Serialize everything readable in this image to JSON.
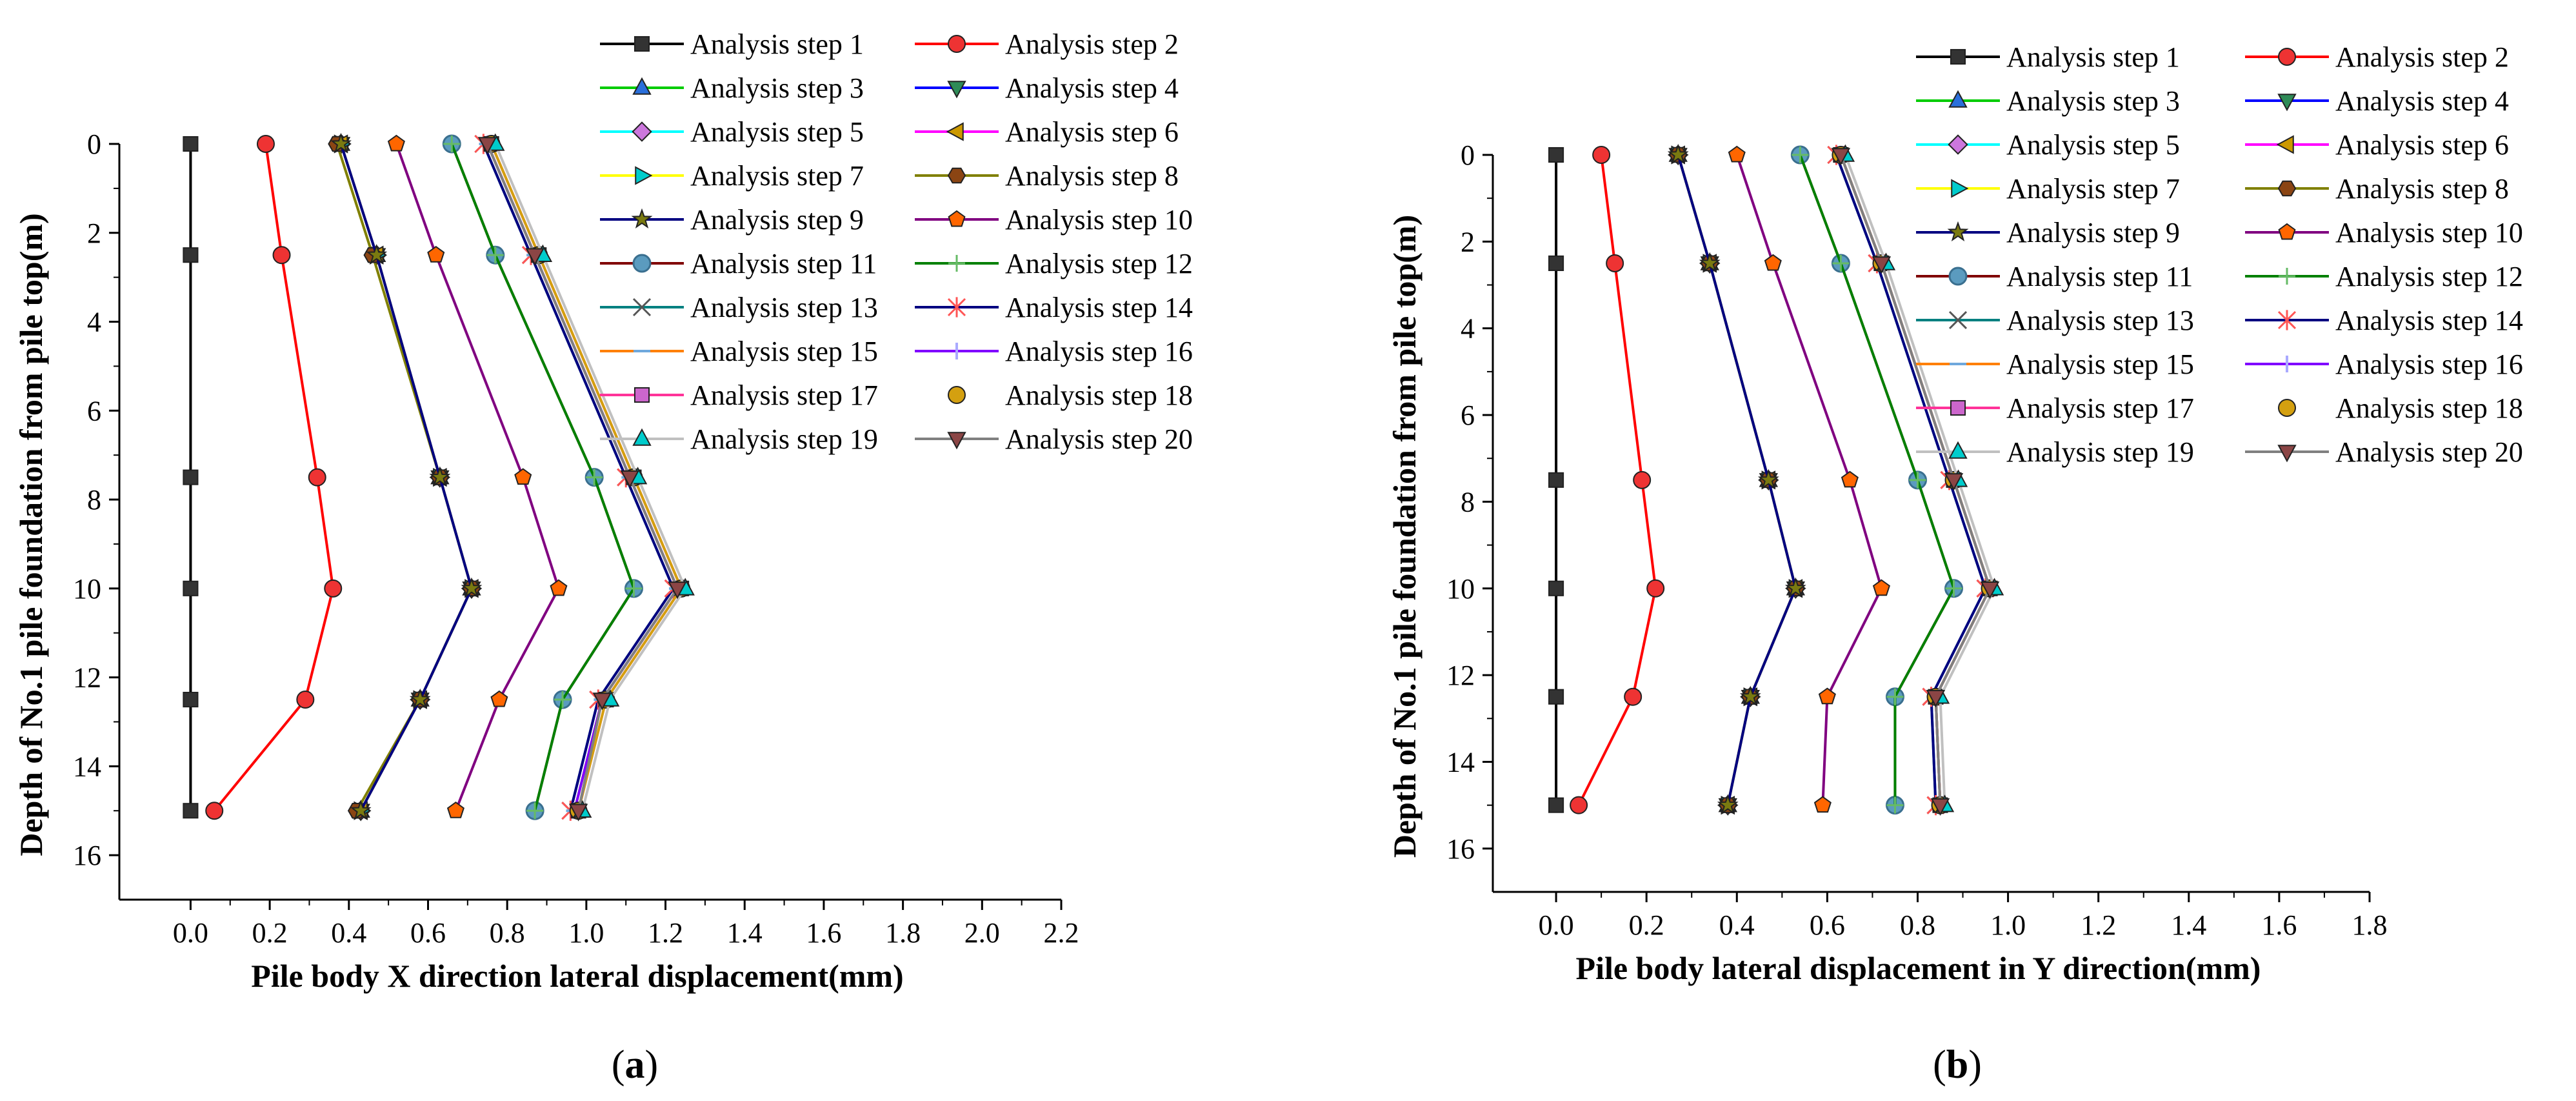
{
  "figure": {
    "panels": [
      {
        "caption_open": "(",
        "caption_letter": "a",
        "caption_close": ")"
      },
      {
        "caption_open": "(",
        "caption_letter": "b",
        "caption_close": ")"
      }
    ]
  },
  "legend_style": [
    {
      "color": "#000000",
      "marker": "square",
      "marker_color": "#333333"
    },
    {
      "color": "#ff0000",
      "marker": "circle",
      "marker_color": "#ee3333"
    },
    {
      "color": "#00cc00",
      "marker": "triangle",
      "marker_color": "#2a6fdb"
    },
    {
      "color": "#0000ff",
      "marker": "triangle-down",
      "marker_color": "#2e8b57"
    },
    {
      "color": "#00ffff",
      "marker": "diamond",
      "marker_color": "#cc77dd"
    },
    {
      "color": "#ff00ff",
      "marker": "triangle-left",
      "marker_color": "#cc9900"
    },
    {
      "color": "#ffff00",
      "marker": "triangle-right",
      "marker_color": "#00cccc"
    },
    {
      "color": "#808000",
      "marker": "hexagon",
      "marker_color": "#8b4513"
    },
    {
      "color": "#000080",
      "marker": "star",
      "marker_color": "#7a7a10"
    },
    {
      "color": "#800080",
      "marker": "pentagon",
      "marker_color": "#ff6600"
    },
    {
      "color": "#800000",
      "marker": "sphere",
      "marker_color": "#5b9bbf"
    },
    {
      "color": "#008000",
      "marker": "plus",
      "marker_color": "#66bb66"
    },
    {
      "color": "#008080",
      "marker": "x",
      "marker_color": "#555555"
    },
    {
      "color": "#000080",
      "marker": "asterisk",
      "marker_color": "#ff5555"
    },
    {
      "color": "#ff8000",
      "marker": "dash",
      "marker_color": "#6fa8dc"
    },
    {
      "color": "#8000ff",
      "marker": "bar",
      "marker_color": "#aaaaff"
    },
    {
      "color": "#ff3399",
      "marker": "square",
      "marker_color": "#cc66cc"
    },
    {
      "color": "#ffffff",
      "marker": "circle",
      "marker_color": "#d4a010"
    },
    {
      "color": "#c0c0c0",
      "marker": "triangle",
      "marker_color": "#00cccc"
    },
    {
      "color": "#808080",
      "marker": "triangle-down",
      "marker_color": "#8b4545"
    }
  ],
  "chart_data": [
    {
      "type": "line",
      "title": "",
      "xlabel": "Pile body X direction lateral displacement(mm)",
      "ylabel": "Depth of No.1 pile foundation from pile top(m)",
      "xlim": [
        -0.18,
        2.2
      ],
      "ylim": [
        0,
        17
      ],
      "y_inverted": true,
      "xticks": [
        "0.0",
        "0.2",
        "0.4",
        "0.6",
        "0.8",
        "1.0",
        "1.2",
        "1.4",
        "1.6",
        "1.8",
        "2.0",
        "2.2"
      ],
      "yticks": [
        "0",
        "2",
        "4",
        "6",
        "8",
        "10",
        "12",
        "14",
        "16"
      ],
      "depths": [
        0,
        2.5,
        7.5,
        10,
        12.5,
        15
      ],
      "legend": {
        "location": "top-right",
        "columns": 2
      },
      "series": [
        {
          "name": "Analysis step 1",
          "values": [
            0,
            0,
            0,
            0,
            0,
            0
          ]
        },
        {
          "name": "Analysis step 2",
          "values": [
            0.19,
            0.23,
            0.32,
            0.36,
            0.29,
            0.06
          ]
        },
        {
          "name": "Analysis step 3",
          "values": [
            0.38,
            0.47,
            0.63,
            0.71,
            0.58,
            0.43
          ]
        },
        {
          "name": "Analysis step 4",
          "values": [
            0.38,
            0.47,
            0.63,
            0.71,
            0.58,
            0.43
          ]
        },
        {
          "name": "Analysis step 5",
          "values": [
            0.38,
            0.47,
            0.63,
            0.71,
            0.58,
            0.43
          ]
        },
        {
          "name": "Analysis step 6",
          "values": [
            0.38,
            0.47,
            0.63,
            0.71,
            0.58,
            0.43
          ]
        },
        {
          "name": "Analysis step 7",
          "values": [
            0.38,
            0.47,
            0.63,
            0.71,
            0.58,
            0.43
          ]
        },
        {
          "name": "Analysis step 8",
          "values": [
            0.37,
            0.46,
            0.63,
            0.71,
            0.58,
            0.42
          ]
        },
        {
          "name": "Analysis step 9",
          "values": [
            0.38,
            0.47,
            0.63,
            0.71,
            0.58,
            0.43
          ]
        },
        {
          "name": "Analysis step 10",
          "values": [
            0.52,
            0.62,
            0.84,
            0.93,
            0.78,
            0.67
          ]
        },
        {
          "name": "Analysis step 11",
          "values": [
            0.66,
            0.77,
            1.02,
            1.12,
            0.94,
            0.87
          ]
        },
        {
          "name": "Analysis step 12",
          "values": [
            0.66,
            0.77,
            1.02,
            1.12,
            0.94,
            0.87
          ]
        },
        {
          "name": "Analysis step 13",
          "values": [
            0.74,
            0.86,
            1.1,
            1.22,
            1.03,
            0.96
          ]
        },
        {
          "name": "Analysis step 14",
          "values": [
            0.74,
            0.86,
            1.1,
            1.22,
            1.03,
            0.96
          ]
        },
        {
          "name": "Analysis step 15",
          "values": [
            0.75,
            0.87,
            1.11,
            1.23,
            1.04,
            0.97
          ]
        },
        {
          "name": "Analysis step 16",
          "values": [
            0.75,
            0.87,
            1.11,
            1.23,
            1.04,
            0.97
          ]
        },
        {
          "name": "Analysis step 17",
          "values": [
            0.76,
            0.88,
            1.12,
            1.24,
            1.05,
            0.98
          ]
        },
        {
          "name": "Analysis step 18",
          "values": [
            0.76,
            0.88,
            1.12,
            1.24,
            1.05,
            0.98
          ]
        },
        {
          "name": "Analysis step 19",
          "values": [
            0.77,
            0.89,
            1.13,
            1.25,
            1.06,
            0.99
          ]
        },
        {
          "name": "Analysis step 20",
          "values": [
            0.75,
            0.87,
            1.11,
            1.23,
            1.04,
            0.98
          ]
        }
      ]
    },
    {
      "type": "line",
      "title": "",
      "xlabel": "Pile body lateral displacement in Y direction(mm)",
      "ylabel": "Depth of No.1 pile foundation from pile top(m)",
      "xlim": [
        -0.14,
        1.8
      ],
      "ylim": [
        0,
        17
      ],
      "y_inverted": true,
      "xticks": [
        "0.0",
        "0.2",
        "0.4",
        "0.6",
        "0.8",
        "1.0",
        "1.2",
        "1.4",
        "1.6",
        "1.8"
      ],
      "yticks": [
        "0",
        "2",
        "4",
        "6",
        "8",
        "10",
        "12",
        "14",
        "16"
      ],
      "depths": [
        0,
        2.5,
        7.5,
        10,
        12.5,
        15
      ],
      "legend": {
        "location": "top-right",
        "columns": 2
      },
      "series": [
        {
          "name": "Analysis step 1",
          "values": [
            0,
            0,
            0,
            0,
            0,
            0
          ]
        },
        {
          "name": "Analysis step 2",
          "values": [
            0.1,
            0.13,
            0.19,
            0.22,
            0.17,
            0.05
          ]
        },
        {
          "name": "Analysis step 3",
          "values": [
            0.27,
            0.34,
            0.47,
            0.53,
            0.43,
            0.38
          ]
        },
        {
          "name": "Analysis step 4",
          "values": [
            0.27,
            0.34,
            0.47,
            0.53,
            0.43,
            0.38
          ]
        },
        {
          "name": "Analysis step 5",
          "values": [
            0.27,
            0.34,
            0.47,
            0.53,
            0.43,
            0.38
          ]
        },
        {
          "name": "Analysis step 6",
          "values": [
            0.27,
            0.34,
            0.47,
            0.53,
            0.43,
            0.38
          ]
        },
        {
          "name": "Analysis step 7",
          "values": [
            0.27,
            0.34,
            0.47,
            0.53,
            0.43,
            0.38
          ]
        },
        {
          "name": "Analysis step 8",
          "values": [
            0.27,
            0.34,
            0.47,
            0.53,
            0.43,
            0.38
          ]
        },
        {
          "name": "Analysis step 9",
          "values": [
            0.27,
            0.34,
            0.47,
            0.53,
            0.43,
            0.38
          ]
        },
        {
          "name": "Analysis step 10",
          "values": [
            0.4,
            0.48,
            0.65,
            0.72,
            0.6,
            0.59
          ]
        },
        {
          "name": "Analysis step 11",
          "values": [
            0.54,
            0.63,
            0.8,
            0.88,
            0.75,
            0.75
          ]
        },
        {
          "name": "Analysis step 12",
          "values": [
            0.54,
            0.63,
            0.8,
            0.88,
            0.75,
            0.75
          ]
        },
        {
          "name": "Analysis step 13",
          "values": [
            0.62,
            0.71,
            0.87,
            0.95,
            0.83,
            0.84
          ]
        },
        {
          "name": "Analysis step 14",
          "values": [
            0.62,
            0.71,
            0.87,
            0.95,
            0.83,
            0.84
          ]
        },
        {
          "name": "Analysis step 15",
          "values": [
            0.63,
            0.72,
            0.88,
            0.96,
            0.84,
            0.85
          ]
        },
        {
          "name": "Analysis step 16",
          "values": [
            0.63,
            0.72,
            0.88,
            0.96,
            0.84,
            0.85
          ]
        },
        {
          "name": "Analysis step 17",
          "values": [
            0.63,
            0.72,
            0.88,
            0.96,
            0.84,
            0.85
          ]
        },
        {
          "name": "Analysis step 18",
          "values": [
            0.63,
            0.72,
            0.88,
            0.96,
            0.84,
            0.85
          ]
        },
        {
          "name": "Analysis step 19",
          "values": [
            0.64,
            0.73,
            0.89,
            0.97,
            0.85,
            0.86
          ]
        },
        {
          "name": "Analysis step 20",
          "values": [
            0.63,
            0.72,
            0.88,
            0.96,
            0.84,
            0.85
          ]
        }
      ]
    }
  ]
}
